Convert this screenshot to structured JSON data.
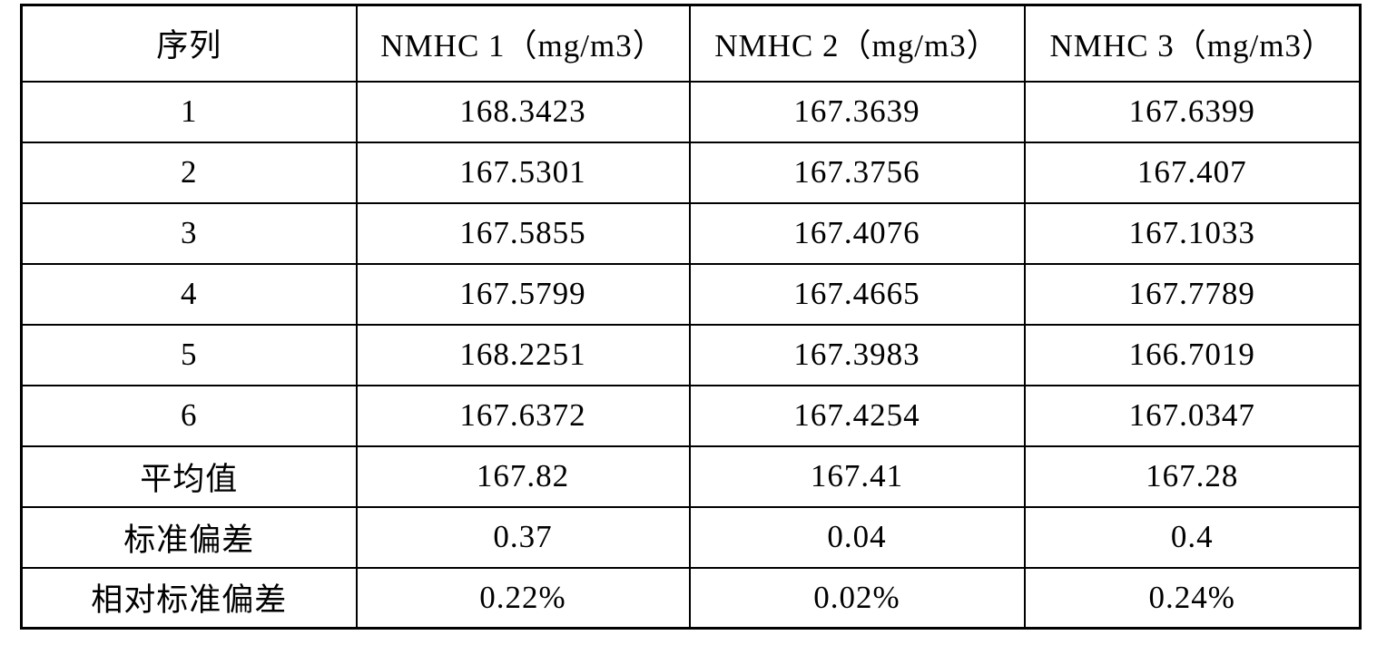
{
  "table": {
    "header": [
      "序列",
      "NMHC 1（mg/m3）",
      "NMHC 2（mg/m3）",
      "NMHC 3（mg/m3）"
    ],
    "rows": [
      [
        "1",
        "168.3423",
        "167.3639",
        "167.6399"
      ],
      [
        "2",
        "167.5301",
        "167.3756",
        "167.407"
      ],
      [
        "3",
        "167.5855",
        "167.4076",
        "167.1033"
      ],
      [
        "4",
        "167.5799",
        "167.4665",
        "167.7789"
      ],
      [
        "5",
        "168.2251",
        "167.3983",
        "166.7019"
      ],
      [
        "6",
        "167.6372",
        "167.4254",
        "167.0347"
      ],
      [
        "平均值",
        "167.82",
        "167.41",
        "167.28"
      ],
      [
        "标准偏差",
        "0.37",
        "0.04",
        "0.4"
      ],
      [
        "相对标准偏差",
        "0.22%",
        "0.02%",
        "0.24%"
      ]
    ]
  }
}
